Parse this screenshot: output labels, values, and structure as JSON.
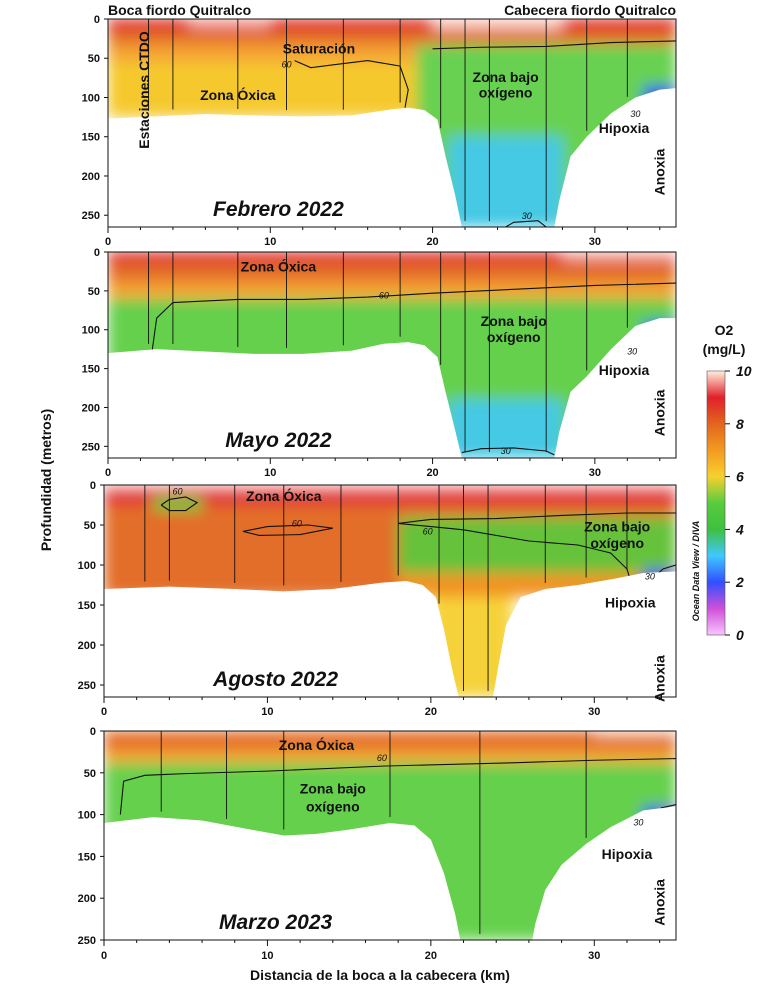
{
  "figure": {
    "y_axis_title": "Profundidad (metros)",
    "x_axis_title": "Distancia de la boca a la cabecera (km)",
    "top_left_label": "Boca fiordo Quitralco",
    "top_right_label": "Cabecera fiordo Quitralco",
    "stations_label": "Estaciones CTDO",
    "colorbar": {
      "title_line1": "O2",
      "title_line2": "(mg/L)",
      "ticks": [
        "0",
        "2",
        "4",
        "6",
        "8",
        "10"
      ],
      "credit": "Ocean Data View / DIVA",
      "colors": {
        "0": "#f7c6ff",
        "1": "#d050d8",
        "2": "#3050ff",
        "3": "#40c8ff",
        "4": "#3ec040",
        "5": "#58cc3e",
        "6": "#f6d02e",
        "7": "#f39a20",
        "8": "#e2661e",
        "9": "#e0202a",
        "10": "#fff0dc"
      }
    }
  },
  "chart_data": [
    {
      "type": "heatmap",
      "title": "Febrero 2022",
      "variable": "O2 (mg/L)",
      "xlim": [
        0,
        35
      ],
      "ylim": [
        0,
        265
      ],
      "xticks": [
        "0",
        "10",
        "20",
        "30"
      ],
      "yticks": [
        "0",
        "50",
        "100",
        "150",
        "200",
        "250"
      ],
      "stations_km": [
        2.5,
        4,
        8,
        11,
        14.5,
        18,
        20.5,
        22,
        23.5,
        27,
        29.5,
        32
      ],
      "bottom_profile": [
        [
          0,
          127
        ],
        [
          3,
          124
        ],
        [
          6,
          121
        ],
        [
          9,
          123
        ],
        [
          12,
          124
        ],
        [
          15,
          123
        ],
        [
          17.5,
          115
        ],
        [
          18.5,
          113
        ],
        [
          19.5,
          116
        ],
        [
          20.3,
          128
        ],
        [
          20.8,
          175
        ],
        [
          21.4,
          225
        ],
        [
          21.8,
          265
        ],
        [
          27.5,
          265
        ],
        [
          27.8,
          232
        ],
        [
          28.5,
          175
        ],
        [
          29.5,
          150
        ],
        [
          31,
          120
        ],
        [
          32.5,
          100
        ],
        [
          34,
          90
        ],
        [
          35,
          88
        ]
      ],
      "isolines": [
        {
          "value": "60",
          "points": [
            [
              11.5,
              53
            ],
            [
              12.5,
              62
            ],
            [
              14,
              58
            ],
            [
              16,
              53
            ],
            [
              18,
              60
            ],
            [
              18.5,
              90
            ],
            [
              18.3,
              113
            ]
          ]
        },
        {
          "value": "60",
          "points": [
            [
              20,
              38
            ],
            [
              23,
              36
            ],
            [
              27,
              35
            ],
            [
              31,
              30
            ],
            [
              35,
              28
            ]
          ]
        },
        {
          "value": "30",
          "points": [
            [
              33.2,
              160
            ],
            [
              33,
              130
            ],
            [
              33.6,
              100
            ],
            [
              34.5,
              92
            ]
          ]
        },
        {
          "value": "30",
          "points": [
            [
              24.5,
              265
            ],
            [
              25,
              259
            ],
            [
              26.5,
              257
            ],
            [
              27,
              265
            ]
          ]
        }
      ],
      "contour_labels": [
        {
          "text": "60",
          "x": 11,
          "y": 62
        },
        {
          "text": "30",
          "x": 32.5,
          "y": 125
        },
        {
          "text": "30",
          "x": 25.8,
          "y": 255
        }
      ],
      "annotations": [
        {
          "text": "Saturación",
          "x": 13,
          "y": 44
        },
        {
          "text": "Zona Óxica",
          "x": 8,
          "y": 103
        },
        {
          "text": "Zona bajo",
          "x": 24.5,
          "y": 80
        },
        {
          "text": "oxígeno",
          "x": 24.5,
          "y": 100
        },
        {
          "text": "Hipoxia",
          "x": 31.8,
          "y": 145
        },
        {
          "text": "Anoxia",
          "x": 34.3,
          "y": 195,
          "rotate": -90
        }
      ]
    },
    {
      "type": "heatmap",
      "title": "Mayo 2022",
      "variable": "O2 (mg/L)",
      "xlim": [
        0,
        35
      ],
      "ylim": [
        0,
        265
      ],
      "xticks": [
        "0",
        "10",
        "20",
        "30"
      ],
      "yticks": [
        "0",
        "50",
        "100",
        "150",
        "200",
        "250"
      ],
      "stations_km": [
        2.5,
        4,
        8,
        11,
        14.5,
        18,
        20.5,
        22,
        23.5,
        27,
        29.5,
        32
      ],
      "bottom_profile": [
        [
          0,
          130
        ],
        [
          3,
          125
        ],
        [
          6,
          128
        ],
        [
          9,
          131
        ],
        [
          12,
          131
        ],
        [
          15,
          127
        ],
        [
          17,
          118
        ],
        [
          18.5,
          116
        ],
        [
          19.5,
          120
        ],
        [
          20.3,
          135
        ],
        [
          20.8,
          180
        ],
        [
          21.4,
          230
        ],
        [
          21.8,
          265
        ],
        [
          27.5,
          265
        ],
        [
          27.8,
          232
        ],
        [
          28.5,
          180
        ],
        [
          29.5,
          160
        ],
        [
          31,
          125
        ],
        [
          32.5,
          95
        ],
        [
          34,
          85
        ],
        [
          35,
          85
        ]
      ],
      "isolines": [
        {
          "value": "60",
          "points": [
            [
              2.7,
              130
            ],
            [
              3,
              85
            ],
            [
              4,
              65
            ],
            [
              8,
              61
            ],
            [
              12,
              61
            ],
            [
              16,
              58
            ],
            [
              20,
              53
            ],
            [
              25,
              48
            ],
            [
              30,
              43
            ],
            [
              35,
              40
            ]
          ]
        },
        {
          "value": "30",
          "points": [
            [
              33.2,
              160
            ],
            [
              33,
              128
            ],
            [
              33.6,
              95
            ],
            [
              34.5,
              88
            ]
          ]
        },
        {
          "value": "30",
          "points": [
            [
              21.8,
              258
            ],
            [
              23,
              253
            ],
            [
              25,
              252
            ],
            [
              27,
              256
            ],
            [
              27.5,
              261
            ]
          ]
        }
      ],
      "contour_labels": [
        {
          "text": "60",
          "x": 17,
          "y": 60
        },
        {
          "text": "30",
          "x": 32.3,
          "y": 132
        },
        {
          "text": "30",
          "x": 24.5,
          "y": 260
        }
      ],
      "annotations": [
        {
          "text": "Zona Óxica",
          "x": 10.5,
          "y": 25
        },
        {
          "text": "Zona bajo",
          "x": 25,
          "y": 95
        },
        {
          "text": "oxígeno",
          "x": 25,
          "y": 116
        },
        {
          "text": "Hipoxia",
          "x": 31.8,
          "y": 158
        },
        {
          "text": "Anoxia",
          "x": 34.3,
          "y": 207,
          "rotate": -90
        }
      ]
    },
    {
      "type": "heatmap",
      "title": "Agosto 2022",
      "variable": "O2 (mg/L)",
      "xlim": [
        0,
        35
      ],
      "ylim": [
        0,
        265
      ],
      "xticks": [
        "0",
        "10",
        "20",
        "30"
      ],
      "yticks": [
        "0",
        "50",
        "100",
        "150",
        "200",
        "250"
      ],
      "stations_km": [
        2.5,
        4,
        8,
        11,
        14.5,
        18,
        20.5,
        22,
        23.5,
        27,
        29.5,
        32
      ],
      "bottom_profile": [
        [
          0,
          130
        ],
        [
          4,
          127
        ],
        [
          8,
          130
        ],
        [
          11,
          133
        ],
        [
          14,
          130
        ],
        [
          17,
          122
        ],
        [
          18.5,
          120
        ],
        [
          19.5,
          125
        ],
        [
          20.3,
          140
        ],
        [
          20.8,
          180
        ],
        [
          21.3,
          230
        ],
        [
          21.7,
          265
        ],
        [
          23.8,
          265
        ],
        [
          24.1,
          230
        ],
        [
          24.6,
          175
        ],
        [
          25.5,
          140
        ],
        [
          27,
          130
        ],
        [
          29,
          125
        ],
        [
          31,
          118
        ],
        [
          33,
          110
        ],
        [
          35,
          108
        ]
      ],
      "isolines": [
        {
          "value": "60",
          "points": [
            [
              3.5,
              25
            ],
            [
              4,
              18
            ],
            [
              5,
              15
            ],
            [
              5.7,
              22
            ],
            [
              5,
              32
            ],
            [
              4,
              32
            ],
            [
              3.5,
              25
            ]
          ]
        },
        {
          "value": "60",
          "points": [
            [
              8.5,
              58
            ],
            [
              10,
              52
            ],
            [
              12.5,
              50
            ],
            [
              14,
              54
            ],
            [
              12,
              62
            ],
            [
              9.5,
              63
            ],
            [
              8.5,
              58
            ]
          ]
        },
        {
          "value": "60",
          "points": [
            [
              18,
              48
            ],
            [
              20,
              43
            ],
            [
              24,
              42
            ],
            [
              28,
              38
            ],
            [
              32,
              35
            ],
            [
              35,
              35
            ]
          ]
        },
        {
          "value": "60",
          "points": [
            [
              18,
              48
            ],
            [
              20,
              52
            ],
            [
              22,
              56
            ],
            [
              26,
              70
            ],
            [
              29,
              75
            ],
            [
              31,
              85
            ],
            [
              32,
              105
            ],
            [
              32.3,
              125
            ]
          ]
        },
        {
          "value": "30",
          "points": [
            [
              33.8,
              140
            ],
            [
              33.4,
              120
            ],
            [
              34.2,
              105
            ],
            [
              35,
              100
            ]
          ]
        }
      ],
      "contour_labels": [
        {
          "text": "60",
          "x": 4.5,
          "y": 12
        },
        {
          "text": "60",
          "x": 11.8,
          "y": 52
        },
        {
          "text": "60",
          "x": 19.8,
          "y": 62
        },
        {
          "text": "30",
          "x": 33.4,
          "y": 118
        }
      ],
      "annotations": [
        {
          "text": "Zona Óxica",
          "x": 11,
          "y": 20
        },
        {
          "text": "Zona bajo",
          "x": 31.4,
          "y": 58
        },
        {
          "text": "oxígeno",
          "x": 31.4,
          "y": 79
        },
        {
          "text": "Hipoxia",
          "x": 32.2,
          "y": 153
        },
        {
          "text": "Anoxia",
          "x": 34.3,
          "y": 242,
          "rotate": -90
        }
      ]
    },
    {
      "type": "heatmap",
      "title": "Marzo 2023",
      "variable": "O2 (mg/L)",
      "xlim": [
        0,
        35
      ],
      "ylim": [
        0,
        250
      ],
      "xticks": [
        "0",
        "10",
        "20",
        "30"
      ],
      "yticks": [
        "0",
        "50",
        "100",
        "150",
        "200",
        "250"
      ],
      "stations_km": [
        3.5,
        7.5,
        11,
        17.5,
        23,
        29.5
      ],
      "bottom_profile": [
        [
          0,
          110
        ],
        [
          3,
          103
        ],
        [
          6,
          107
        ],
        [
          9,
          118
        ],
        [
          11,
          125
        ],
        [
          13,
          123
        ],
        [
          15,
          118
        ],
        [
          17.5,
          110
        ],
        [
          19,
          113
        ],
        [
          20,
          130
        ],
        [
          20.8,
          170
        ],
        [
          21.5,
          220
        ],
        [
          21.8,
          250
        ],
        [
          26.2,
          250
        ],
        [
          26.4,
          230
        ],
        [
          27,
          190
        ],
        [
          28,
          160
        ],
        [
          29.5,
          135
        ],
        [
          31,
          115
        ],
        [
          33,
          95
        ],
        [
          35,
          90
        ]
      ],
      "isolines": [
        {
          "value": "60",
          "points": [
            [
              1,
              100
            ],
            [
              1.2,
              60
            ],
            [
              2.5,
              53
            ],
            [
              5,
              51
            ],
            [
              10,
              48
            ],
            [
              17,
              42
            ],
            [
              25,
              38
            ],
            [
              30,
              35
            ],
            [
              35,
              33
            ]
          ]
        },
        {
          "value": "30",
          "points": [
            [
              33.6,
              130
            ],
            [
              33.3,
              110
            ],
            [
              34.1,
              92
            ],
            [
              35,
              88
            ]
          ]
        }
      ],
      "contour_labels": [
        {
          "text": "60",
          "x": 17,
          "y": 36
        },
        {
          "text": "30",
          "x": 32.7,
          "y": 113
        }
      ],
      "annotations": [
        {
          "text": "Zona Óxica",
          "x": 13,
          "y": 23
        },
        {
          "text": "Zona bajo",
          "x": 14,
          "y": 75
        },
        {
          "text": "oxígeno",
          "x": 14,
          "y": 96
        },
        {
          "text": "Hipoxia",
          "x": 32,
          "y": 153
        },
        {
          "text": "Anoxia",
          "x": 34.3,
          "y": 205,
          "rotate": -90
        }
      ]
    }
  ]
}
